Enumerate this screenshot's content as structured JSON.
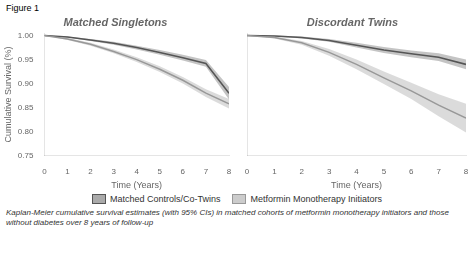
{
  "chart_data": [
    {
      "type": "line",
      "title": "Matched Singletons",
      "x_label": "Time (Years)",
      "y_label": "Cumulative Survival (%)",
      "annotations": [
        "Figure 1",
        "Kaplan-Meier cumulative survival estimates (with 95% CIs) in matched cohorts of metformin monotherapy initiators and those without diabetes over 8 years of follow-up"
      ],
      "x": [
        0,
        1,
        2,
        3,
        4,
        5,
        6,
        7,
        8
      ],
      "series": [
        {
          "name": "Matched Controls/Co-Twins",
          "color": "#555555",
          "values": [
            1.0,
            0.997,
            0.991,
            0.984,
            0.975,
            0.965,
            0.954,
            0.942,
            0.88
          ],
          "upper": [
            1.0,
            0.998,
            0.993,
            0.987,
            0.979,
            0.97,
            0.96,
            0.949,
            0.893
          ],
          "lower": [
            1.0,
            0.996,
            0.989,
            0.981,
            0.971,
            0.96,
            0.948,
            0.935,
            0.867
          ]
        },
        {
          "name": "Metformin Monotherapy Initiators",
          "color": "#999999",
          "values": [
            1.0,
            0.993,
            0.982,
            0.967,
            0.95,
            0.93,
            0.907,
            0.88,
            0.858
          ],
          "upper": [
            1.0,
            0.995,
            0.985,
            0.971,
            0.955,
            0.936,
            0.914,
            0.888,
            0.868
          ],
          "lower": [
            1.0,
            0.991,
            0.979,
            0.963,
            0.945,
            0.924,
            0.9,
            0.872,
            0.848
          ]
        }
      ],
      "xlim": [
        0,
        8
      ],
      "xticks": [
        0,
        1,
        2,
        3,
        4,
        5,
        6,
        7,
        8
      ],
      "ylim": [
        0.75,
        1.005
      ],
      "yticks": [
        0.75,
        {
          "value": 0.8,
          "label": "0.80"
        },
        0.85,
        {
          "value": 0.9,
          "label": "0.90"
        },
        0.95,
        {
          "value": 1,
          "label": "1.00"
        }
      ],
      "grid": false,
      "legend": "bottom"
    },
    {
      "type": "line",
      "title": "Discordant Twins",
      "x_label": "Time (Years)",
      "x": [
        0,
        1,
        2,
        3,
        4,
        5,
        6,
        7,
        8
      ],
      "series": [
        {
          "name": "Matched Controls/Co-Twins",
          "color": "#555555",
          "values": [
            1.0,
            0.999,
            0.996,
            0.99,
            0.98,
            0.97,
            0.962,
            0.955,
            0.94
          ],
          "upper": [
            1.0,
            1.0,
            0.998,
            0.993,
            0.985,
            0.976,
            0.969,
            0.963,
            0.95
          ],
          "lower": [
            1.0,
            0.998,
            0.994,
            0.987,
            0.975,
            0.964,
            0.955,
            0.947,
            0.93
          ]
        },
        {
          "name": "Metformin Monotherapy Initiators",
          "color": "#999999",
          "values": [
            1.0,
            0.996,
            0.985,
            0.965,
            0.94,
            0.912,
            0.885,
            0.855,
            0.828
          ],
          "upper": [
            1.0,
            0.998,
            0.989,
            0.972,
            0.95,
            0.925,
            0.902,
            0.878,
            0.858
          ],
          "lower": [
            1.0,
            0.994,
            0.981,
            0.958,
            0.93,
            0.899,
            0.868,
            0.832,
            0.798
          ]
        }
      ],
      "xlim": [
        0,
        8
      ],
      "xticks": [
        0,
        1,
        2,
        3,
        4,
        5,
        6,
        7,
        8
      ],
      "ylim": [
        0.75,
        1.005
      ],
      "yticks": [
        0.75,
        {
          "value": 0.8,
          "label": "0.80"
        },
        0.85,
        {
          "value": 0.9,
          "label": "0.90"
        },
        0.95,
        {
          "value": 1,
          "label": "1.00"
        }
      ],
      "grid": false,
      "tick_labels": "x"
    }
  ]
}
